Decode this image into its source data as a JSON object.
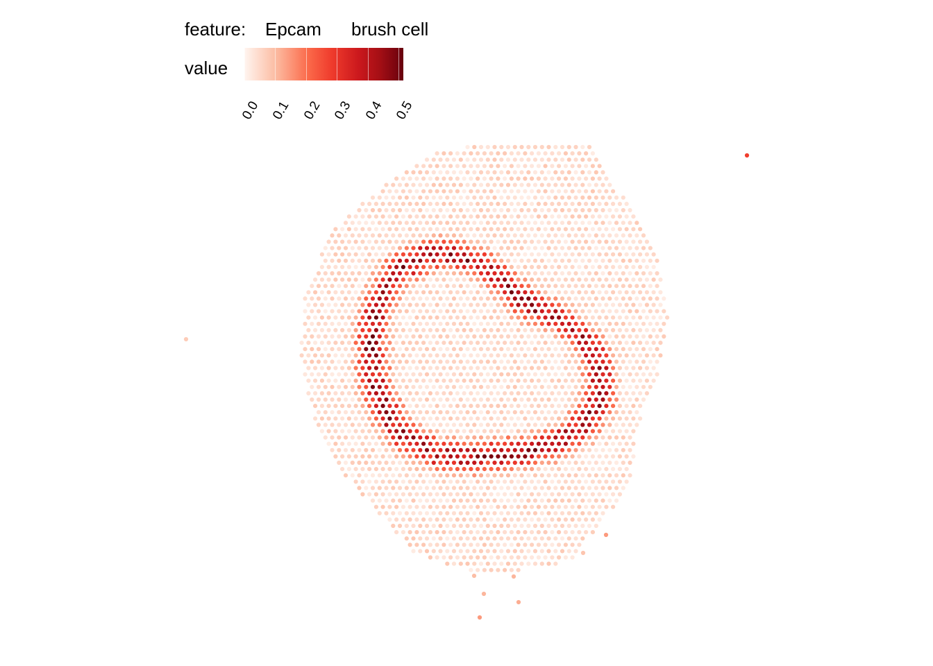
{
  "legend": {
    "feature_label": "feature:",
    "feature_name": "Epcam",
    "cell_type": "brush cell",
    "value_label": "value",
    "ticks": [
      "0.0",
      "0.1",
      "0.2",
      "0.3",
      "0.4",
      "0.5"
    ]
  },
  "chart_data": {
    "type": "scatter",
    "title": "",
    "feature": "Epcam",
    "cell_type": "brush cell",
    "color_scale": {
      "name": "value",
      "palette": "Reds",
      "range": [
        0.0,
        0.51
      ],
      "breaks": [
        0.0,
        0.1,
        0.2,
        0.3,
        0.4,
        0.5
      ],
      "colors": [
        "#fff5f0",
        "#fcbba1",
        "#fb6a4a",
        "#ef3b2c",
        "#cb181d",
        "#a50f15",
        "#67000d"
      ]
    },
    "layout_description": "Hexagonal spot grid (spatial transcriptomics) over a roughly circular tissue section; high values form a ring-shaped band, interior and exterior near zero.",
    "ring": {
      "center_x_spot_units": 0.0,
      "center_y_spot_units": 0.0,
      "peak_value": 0.5,
      "background_value": 0.04
    },
    "axes_visible": false,
    "grid": false,
    "legend_position": "top"
  }
}
